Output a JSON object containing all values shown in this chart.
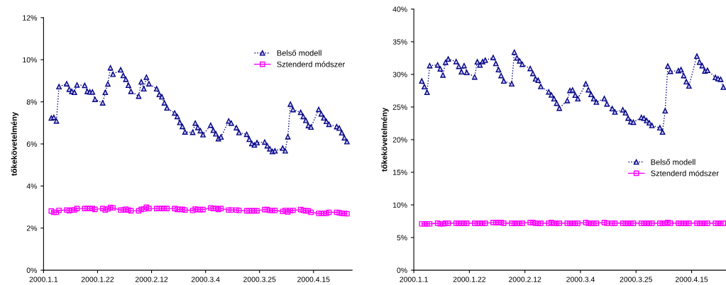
{
  "chart_data": [
    {
      "type": "line",
      "ylabel": "tőkekövetelmény",
      "legend": "top right",
      "grid": false,
      "x": [
        "2000-01-04",
        "2000-01-05",
        "2000-01-06",
        "2000-01-07",
        "2000-01-10",
        "2000-01-11",
        "2000-01-12",
        "2000-01-13",
        "2000-01-14",
        "2000-01-17",
        "2000-01-18",
        "2000-01-19",
        "2000-01-20",
        "2000-01-21",
        "2000-01-24",
        "2000-01-25",
        "2000-01-26",
        "2000-01-27",
        "2000-01-28",
        "2000-01-31",
        "2000-02-01",
        "2000-02-02",
        "2000-02-03",
        "2000-02-04",
        "2000-02-07",
        "2000-02-08",
        "2000-02-09",
        "2000-02-10",
        "2000-02-11",
        "2000-02-14",
        "2000-02-15",
        "2000-02-16",
        "2000-02-17",
        "2000-02-18",
        "2000-02-21",
        "2000-02-22",
        "2000-02-23",
        "2000-02-24",
        "2000-02-25",
        "2000-02-28",
        "2000-02-29",
        "2000-03-01",
        "2000-03-02",
        "2000-03-03",
        "2000-03-06",
        "2000-03-07",
        "2000-03-08",
        "2000-03-09",
        "2000-03-10",
        "2000-03-13",
        "2000-03-14",
        "2000-03-16",
        "2000-03-17",
        "2000-03-20",
        "2000-03-21",
        "2000-03-22",
        "2000-03-23",
        "2000-03-24",
        "2000-03-27",
        "2000-03-28",
        "2000-03-29",
        "2000-03-30",
        "2000-03-31",
        "2000-04-03",
        "2000-04-04",
        "2000-04-05",
        "2000-04-06",
        "2000-04-07",
        "2000-04-10",
        "2000-04-11",
        "2000-04-12",
        "2000-04-13",
        "2000-04-14",
        "2000-04-17",
        "2000-04-18",
        "2000-04-19",
        "2000-04-20",
        "2000-04-21",
        "2000-04-24",
        "2000-04-25",
        "2000-04-26",
        "2000-04-27",
        "2000-04-28"
      ],
      "xlim": [
        "2000-01-01",
        "2000-04-30"
      ],
      "xticks": [
        {
          "value": "2000-01-01",
          "label": "2000.1.1"
        },
        {
          "value": "2000-01-22",
          "label": "2000.1.22"
        },
        {
          "value": "2000-02-12",
          "label": "2000.2.12"
        },
        {
          "value": "2000-03-04",
          "label": "2000.3.4"
        },
        {
          "value": "2000-03-25",
          "label": "2000.3.25"
        },
        {
          "value": "2000-04-15",
          "label": "2000.4.15"
        }
      ],
      "ylim": [
        0,
        12
      ],
      "yticks": [
        {
          "value": 0,
          "label": "0%"
        },
        {
          "value": 2,
          "label": "2%"
        },
        {
          "value": 4,
          "label": "4%"
        },
        {
          "value": 6,
          "label": "6%"
        },
        {
          "value": 8,
          "label": "8%"
        },
        {
          "value": 10,
          "label": "10%"
        },
        {
          "value": 12,
          "label": "12%"
        }
      ],
      "series": [
        {
          "name": "Belső modell",
          "color": "#000080",
          "marker": "triangle",
          "line_style": "dotted",
          "values": [
            7.23,
            7.26,
            7.09,
            8.72,
            8.86,
            8.6,
            8.5,
            8.45,
            8.8,
            8.78,
            8.5,
            8.47,
            8.47,
            8.12,
            7.95,
            8.45,
            8.85,
            9.62,
            9.31,
            9.52,
            9.25,
            9.07,
            8.79,
            8.5,
            8.27,
            8.95,
            8.62,
            9.17,
            8.86,
            8.62,
            8.35,
            8.24,
            7.95,
            7.71,
            7.47,
            7.3,
            7.02,
            6.83,
            6.57,
            6.55,
            6.99,
            6.78,
            6.63,
            6.44,
            6.89,
            6.65,
            6.48,
            6.25,
            6.33,
            7.09,
            6.99,
            6.77,
            6.54,
            6.46,
            6.22,
            6.02,
            5.95,
            6.06,
            6.09,
            5.91,
            5.77,
            5.64,
            5.67,
            5.8,
            5.67,
            6.34,
            7.89,
            7.63,
            7.5,
            7.3,
            7.12,
            6.87,
            6.8,
            7.64,
            7.43,
            7.24,
            7.07,
            6.93,
            6.82,
            6.75,
            6.53,
            6.29,
            6.11
          ]
        },
        {
          "name": "Sztenderd módszer",
          "color": "#ff00ff",
          "marker": "square",
          "line_style": "solid",
          "values": [
            2.81,
            2.75,
            2.75,
            2.84,
            2.86,
            2.83,
            2.86,
            2.86,
            2.93,
            2.93,
            2.93,
            2.93,
            2.93,
            2.89,
            2.93,
            2.86,
            2.91,
            2.98,
            2.96,
            2.86,
            2.86,
            2.9,
            2.86,
            2.82,
            2.82,
            2.89,
            2.91,
            2.99,
            2.93,
            2.93,
            2.93,
            2.93,
            2.93,
            2.93,
            2.93,
            2.89,
            2.89,
            2.89,
            2.86,
            2.84,
            2.91,
            2.88,
            2.88,
            2.88,
            2.96,
            2.93,
            2.93,
            2.89,
            2.93,
            2.86,
            2.86,
            2.86,
            2.84,
            2.82,
            2.82,
            2.82,
            2.82,
            2.82,
            2.88,
            2.88,
            2.84,
            2.84,
            2.84,
            2.79,
            2.84,
            2.77,
            2.84,
            2.84,
            2.88,
            2.84,
            2.82,
            2.82,
            2.75,
            2.7,
            2.7,
            2.7,
            2.7,
            2.75,
            2.75,
            2.73,
            2.7,
            2.7,
            2.68
          ]
        }
      ]
    },
    {
      "type": "line",
      "ylabel": "tőkekövetelmény",
      "legend": "right",
      "grid": false,
      "x": [
        "2000-01-04",
        "2000-01-05",
        "2000-01-06",
        "2000-01-07",
        "2000-01-10",
        "2000-01-11",
        "2000-01-12",
        "2000-01-13",
        "2000-01-14",
        "2000-01-17",
        "2000-01-18",
        "2000-01-19",
        "2000-01-20",
        "2000-01-21",
        "2000-01-24",
        "2000-01-25",
        "2000-01-26",
        "2000-01-27",
        "2000-01-28",
        "2000-01-31",
        "2000-02-01",
        "2000-02-02",
        "2000-02-03",
        "2000-02-04",
        "2000-02-07",
        "2000-02-08",
        "2000-02-09",
        "2000-02-10",
        "2000-02-11",
        "2000-02-14",
        "2000-02-15",
        "2000-02-16",
        "2000-02-17",
        "2000-02-18",
        "2000-02-21",
        "2000-02-22",
        "2000-02-23",
        "2000-02-24",
        "2000-02-25",
        "2000-02-28",
        "2000-02-29",
        "2000-03-01",
        "2000-03-02",
        "2000-03-03",
        "2000-03-06",
        "2000-03-07",
        "2000-03-08",
        "2000-03-09",
        "2000-03-10",
        "2000-03-13",
        "2000-03-14",
        "2000-03-16",
        "2000-03-17",
        "2000-03-20",
        "2000-03-21",
        "2000-03-22",
        "2000-03-23",
        "2000-03-24",
        "2000-03-27",
        "2000-03-28",
        "2000-03-29",
        "2000-03-30",
        "2000-03-31",
        "2000-04-03",
        "2000-04-04",
        "2000-04-05",
        "2000-04-06",
        "2000-04-07",
        "2000-04-10",
        "2000-04-11",
        "2000-04-12",
        "2000-04-13",
        "2000-04-14",
        "2000-04-17",
        "2000-04-18",
        "2000-04-19",
        "2000-04-20",
        "2000-04-21",
        "2000-04-24",
        "2000-04-25",
        "2000-04-26",
        "2000-04-27"
      ],
      "xlim": [
        "2000-01-01",
        "2000-04-28"
      ],
      "xticks": [
        {
          "value": "2000-01-01",
          "label": "2000.1.1"
        },
        {
          "value": "2000-01-22",
          "label": "2000.1.22"
        },
        {
          "value": "2000-02-12",
          "label": "2000.2.12"
        },
        {
          "value": "2000-03-04",
          "label": "2000.3.4"
        },
        {
          "value": "2000-03-25",
          "label": "2000.3.25"
        },
        {
          "value": "2000-04-15",
          "label": "2000.4.15"
        }
      ],
      "ylim": [
        0,
        40
      ],
      "yticks": [
        {
          "value": 0,
          "label": "0%"
        },
        {
          "value": 5,
          "label": "5%"
        },
        {
          "value": 10,
          "label": "10%"
        },
        {
          "value": 15,
          "label": "15%"
        },
        {
          "value": 20,
          "label": "20%"
        },
        {
          "value": 25,
          "label": "25%"
        },
        {
          "value": 30,
          "label": "30%"
        },
        {
          "value": 35,
          "label": "35%"
        },
        {
          "value": 40,
          "label": "40%"
        }
      ],
      "series": [
        {
          "name": "Belső modell",
          "color": "#000080",
          "marker": "triangle",
          "line_style": "dotted",
          "values": [
            28.99,
            28.12,
            27.25,
            31.34,
            31.45,
            30.84,
            29.89,
            31.85,
            32.36,
            31.96,
            31.23,
            30.4,
            31.34,
            30.29,
            29.6,
            31.92,
            31.45,
            31.96,
            32.17,
            32.58,
            31.67,
            30.73,
            29.82,
            28.99,
            28.55,
            33.4,
            32.53,
            32.07,
            31.56,
            30.9,
            30.14,
            29.31,
            29.1,
            28.15,
            27.32,
            26.85,
            26.27,
            25.58,
            24.82,
            25.98,
            27.54,
            27.61,
            26.81,
            26.27,
            28.55,
            27.64,
            26.92,
            26.27,
            25.76,
            26.3,
            25.47,
            24.75,
            24.24,
            24.57,
            24.13,
            23.29,
            22.75,
            22.68,
            23.4,
            23.29,
            22.93,
            22.58,
            22.17,
            21.82,
            21.16,
            24.42,
            31.27,
            30.47,
            30.58,
            30.73,
            29.82,
            28.88,
            28.23,
            32.79,
            31.88,
            31.34,
            30.51,
            30.62,
            29.53,
            29.35,
            29.24,
            28.04
          ]
        },
        {
          "name": "Sztenderd módszer",
          "color": "#ff00ff",
          "marker": "square",
          "line_style": "solid",
          "values": [
            7.1,
            7.1,
            7.1,
            7.1,
            7.2,
            7.1,
            7.1,
            7.2,
            7.2,
            7.2,
            7.2,
            7.2,
            7.2,
            7.2,
            7.2,
            7.2,
            7.2,
            7.2,
            7.2,
            7.3,
            7.3,
            7.3,
            7.3,
            7.2,
            7.2,
            7.2,
            7.2,
            7.2,
            7.2,
            7.3,
            7.3,
            7.2,
            7.2,
            7.2,
            7.2,
            7.3,
            7.2,
            7.2,
            7.2,
            7.2,
            7.2,
            7.2,
            7.2,
            7.2,
            7.3,
            7.2,
            7.2,
            7.2,
            7.2,
            7.3,
            7.2,
            7.2,
            7.2,
            7.2,
            7.2,
            7.2,
            7.2,
            7.2,
            7.2,
            7.2,
            7.2,
            7.2,
            7.2,
            7.2,
            7.2,
            7.2,
            7.3,
            7.2,
            7.2,
            7.2,
            7.2,
            7.2,
            7.2,
            7.2,
            7.2,
            7.2,
            7.2,
            7.2,
            7.2,
            7.2,
            7.2,
            7.2
          ]
        }
      ]
    }
  ]
}
